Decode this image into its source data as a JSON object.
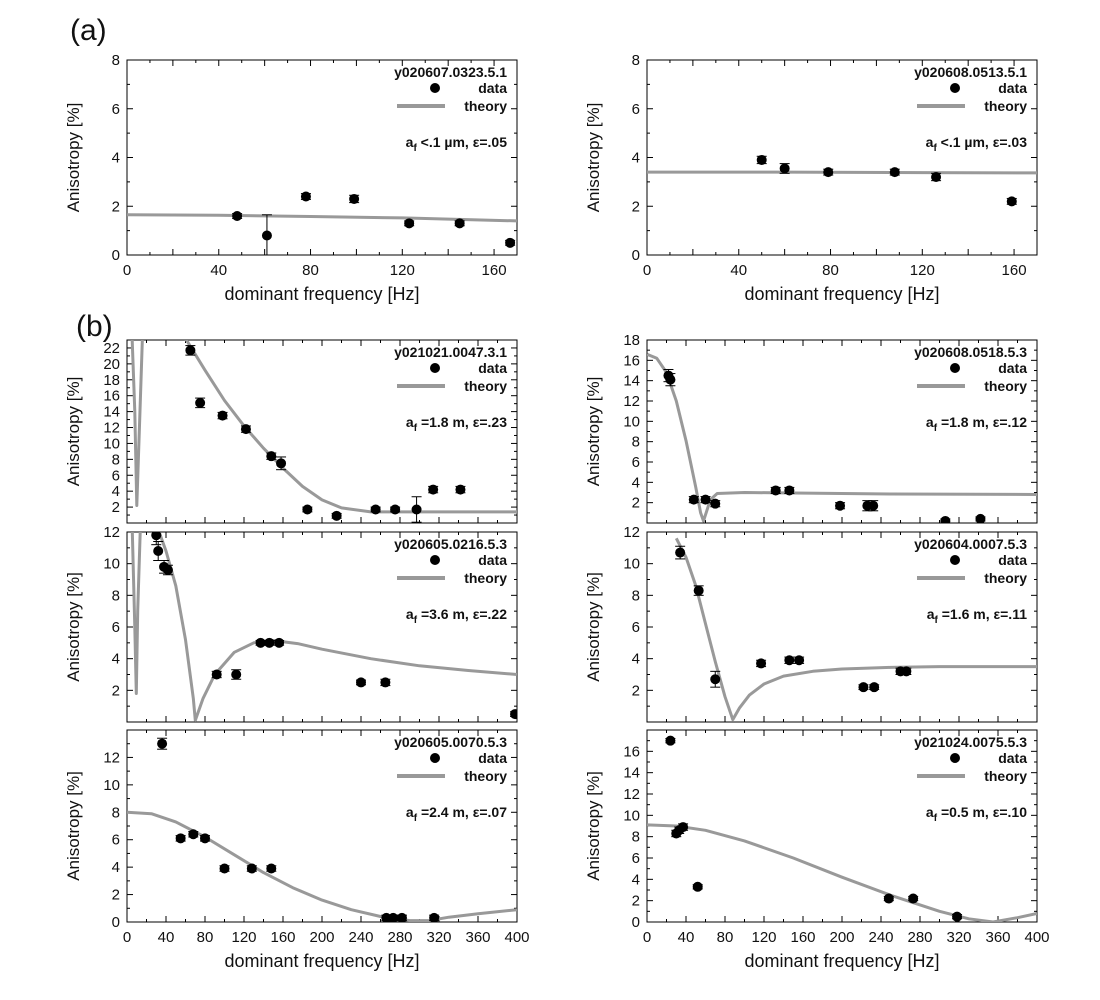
{
  "figure": {
    "panel_a_label": "(a)",
    "panel_b_label": "(b)",
    "xlabel": "dominant frequency [Hz]",
    "ylabel": "Anisotropy [%]",
    "legend_data": "data",
    "legend_theory": "theory",
    "colors": {
      "data": "#000000",
      "theory": "#999999",
      "axis": "#000000"
    }
  },
  "chart_data": [
    {
      "id": "a-left",
      "type": "scatter",
      "title": "y020607.0323.5.1",
      "annotation": {
        "a": "a",
        "sub": "f",
        "rest": " <.1 µm, ε=.05"
      },
      "xlim": [
        0,
        170
      ],
      "ylim": [
        0,
        8
      ],
      "xticks": [
        0,
        40,
        80,
        120,
        160
      ],
      "yticks": [
        0,
        2,
        4,
        6,
        8
      ],
      "data": [
        {
          "x": 48,
          "y": 1.6,
          "err": 0.1
        },
        {
          "x": 61,
          "y": 0.8,
          "err": 0.85
        },
        {
          "x": 78,
          "y": 2.4,
          "err": 0.12
        },
        {
          "x": 99,
          "y": 2.3,
          "err": 0.15
        },
        {
          "x": 123,
          "y": 1.3,
          "err": 0.1
        },
        {
          "x": 145,
          "y": 1.3,
          "err": 0.1
        },
        {
          "x": 167,
          "y": 0.5,
          "err": 0.1
        }
      ],
      "theory": [
        [
          0,
          1.65
        ],
        [
          40,
          1.63
        ],
        [
          80,
          1.58
        ],
        [
          120,
          1.52
        ],
        [
          170,
          1.4
        ]
      ]
    },
    {
      "id": "a-right",
      "type": "scatter",
      "title": "y020608.0513.5.1",
      "annotation": {
        "a": "a",
        "sub": "f",
        "rest": " <.1 µm, ε=.03"
      },
      "xlim": [
        0,
        170
      ],
      "ylim": [
        0,
        8
      ],
      "xticks": [
        0,
        40,
        80,
        120,
        160
      ],
      "yticks": [
        0,
        2,
        4,
        6,
        8
      ],
      "data": [
        {
          "x": 50,
          "y": 3.9,
          "err": 0.15
        },
        {
          "x": 60,
          "y": 3.55,
          "err": 0.2
        },
        {
          "x": 79,
          "y": 3.4,
          "err": 0.12
        },
        {
          "x": 108,
          "y": 3.4,
          "err": 0.12
        },
        {
          "x": 126,
          "y": 3.2,
          "err": 0.15
        },
        {
          "x": 159,
          "y": 2.2,
          "err": 0.12
        }
      ],
      "theory": [
        [
          0,
          3.4
        ],
        [
          60,
          3.4
        ],
        [
          120,
          3.38
        ],
        [
          170,
          3.37
        ]
      ]
    },
    {
      "id": "b1-left",
      "type": "scatter",
      "title": "y021021.0047.3.1",
      "annotation": {
        "a": "a",
        "sub": "f",
        "rest": " =1.8 m, ε=.23"
      },
      "xlim": [
        0,
        400
      ],
      "ylim": [
        0,
        23
      ],
      "xticks": [],
      "yticks": [
        2,
        4,
        6,
        8,
        10,
        12,
        14,
        16,
        18,
        20,
        22
      ],
      "data": [
        {
          "x": 65,
          "y": 21.7,
          "err": 0.6
        },
        {
          "x": 75,
          "y": 15.1,
          "err": 0.6
        },
        {
          "x": 98,
          "y": 13.5,
          "err": 0.4
        },
        {
          "x": 122,
          "y": 11.8,
          "err": 0.4
        },
        {
          "x": 148,
          "y": 8.4,
          "err": 0.4
        },
        {
          "x": 158,
          "y": 7.5,
          "err": 0.8
        },
        {
          "x": 185,
          "y": 1.7,
          "err": 0.3
        },
        {
          "x": 215,
          "y": 0.9,
          "err": 0.3
        },
        {
          "x": 255,
          "y": 1.7,
          "err": 0.3
        },
        {
          "x": 275,
          "y": 1.7,
          "err": 0.3
        },
        {
          "x": 297,
          "y": 1.7,
          "err": 1.6
        },
        {
          "x": 314,
          "y": 4.2,
          "err": 0.4
        },
        {
          "x": 342,
          "y": 4.2,
          "err": 0.4
        }
      ],
      "theory": [
        [
          5,
          24
        ],
        [
          8,
          14
        ],
        [
          10,
          2.2
        ],
        [
          13,
          13
        ],
        [
          16,
          24
        ],
        [
          60,
          23.2
        ],
        [
          80,
          19.2
        ],
        [
          100,
          15.4
        ],
        [
          120,
          12.2
        ],
        [
          140,
          9.4
        ],
        [
          160,
          6.9
        ],
        [
          180,
          4.6
        ],
        [
          200,
          2.9
        ],
        [
          220,
          1.9
        ],
        [
          250,
          1.4
        ],
        [
          300,
          1.4
        ],
        [
          400,
          1.4
        ]
      ]
    },
    {
      "id": "b1-right",
      "type": "scatter",
      "title": "y020608.0518.5.3",
      "annotation": {
        "a": "a",
        "sub": "f",
        "rest": " =1.8 m, ε=.12"
      },
      "xlim": [
        0,
        400
      ],
      "ylim": [
        0,
        18
      ],
      "xticks": [],
      "yticks": [
        2,
        4,
        6,
        8,
        10,
        12,
        14,
        16,
        18
      ],
      "data": [
        {
          "x": 22,
          "y": 14.5,
          "err": 0.6
        },
        {
          "x": 24,
          "y": 14.1,
          "err": 0.6
        },
        {
          "x": 48,
          "y": 2.3,
          "err": 0.3
        },
        {
          "x": 60,
          "y": 2.3,
          "err": 0.3
        },
        {
          "x": 70,
          "y": 1.9,
          "err": 0.3
        },
        {
          "x": 132,
          "y": 3.2,
          "err": 0.3
        },
        {
          "x": 146,
          "y": 3.2,
          "err": 0.3
        },
        {
          "x": 198,
          "y": 1.7,
          "err": 0.3
        },
        {
          "x": 226,
          "y": 1.7,
          "err": 0.5
        },
        {
          "x": 232,
          "y": 1.7,
          "err": 0.5
        },
        {
          "x": 306,
          "y": 0.2,
          "err": 0.2
        },
        {
          "x": 342,
          "y": 0.4,
          "err": 0.2
        }
      ],
      "theory": [
        [
          0,
          16.6
        ],
        [
          10,
          16.2
        ],
        [
          20,
          14.8
        ],
        [
          30,
          12.0
        ],
        [
          40,
          8.1
        ],
        [
          50,
          3.5
        ],
        [
          55,
          1.0
        ],
        [
          58,
          0.2
        ],
        [
          65,
          2.3
        ],
        [
          72,
          2.9
        ],
        [
          100,
          3.0
        ],
        [
          150,
          2.95
        ],
        [
          250,
          2.85
        ],
        [
          400,
          2.8
        ]
      ]
    },
    {
      "id": "b2-left",
      "type": "scatter",
      "title": "y020605.0216.5.3",
      "annotation": {
        "a": "a",
        "sub": "f",
        "rest": " =3.6 m, ε=.22"
      },
      "xlim": [
        0,
        400
      ],
      "ylim": [
        0,
        12
      ],
      "xticks": [],
      "yticks": [
        2,
        4,
        6,
        8,
        10,
        12
      ],
      "data": [
        {
          "x": 30,
          "y": 11.8,
          "err": 0.6
        },
        {
          "x": 32,
          "y": 10.8,
          "err": 0.6
        },
        {
          "x": 38,
          "y": 9.8,
          "err": 0.4
        },
        {
          "x": 42,
          "y": 9.6,
          "err": 0.3
        },
        {
          "x": 92,
          "y": 3.0,
          "err": 0.2
        },
        {
          "x": 112,
          "y": 3.0,
          "err": 0.3
        },
        {
          "x": 137,
          "y": 5.0,
          "err": 0.15
        },
        {
          "x": 146,
          "y": 5.0,
          "err": 0.15
        },
        {
          "x": 156,
          "y": 5.0,
          "err": 0.15
        },
        {
          "x": 240,
          "y": 2.5,
          "err": 0.15
        },
        {
          "x": 265,
          "y": 2.5,
          "err": 0.2
        },
        {
          "x": 398,
          "y": 0.5,
          "err": 0.15
        }
      ],
      "theory": [
        [
          5,
          13
        ],
        [
          8,
          6
        ],
        [
          9.5,
          1.8
        ],
        [
          11,
          7
        ],
        [
          14,
          13
        ],
        [
          30,
          12.5
        ],
        [
          40,
          10.8
        ],
        [
          50,
          8.6
        ],
        [
          60,
          5.2
        ],
        [
          68,
          1.5
        ],
        [
          70,
          0.1
        ],
        [
          78,
          1.5
        ],
        [
          90,
          3.0
        ],
        [
          110,
          4.4
        ],
        [
          130,
          5.0
        ],
        [
          150,
          5.15
        ],
        [
          175,
          4.95
        ],
        [
          200,
          4.6
        ],
        [
          250,
          4.0
        ],
        [
          300,
          3.55
        ],
        [
          350,
          3.25
        ],
        [
          400,
          3.0
        ]
      ]
    },
    {
      "id": "b2-right",
      "type": "scatter",
      "title": "y020604.0007.5.3",
      "annotation": {
        "a": "a",
        "sub": "f",
        "rest": " =1.6 m, ε=.11"
      },
      "xlim": [
        0,
        400
      ],
      "ylim": [
        0,
        12
      ],
      "xticks": [],
      "yticks": [
        2,
        4,
        6,
        8,
        10,
        12
      ],
      "data": [
        {
          "x": 34,
          "y": 10.7,
          "err": 0.4
        },
        {
          "x": 53,
          "y": 8.3,
          "err": 0.3
        },
        {
          "x": 70,
          "y": 2.7,
          "err": 0.5
        },
        {
          "x": 117,
          "y": 3.7,
          "err": 0.2
        },
        {
          "x": 146,
          "y": 3.9,
          "err": 0.2
        },
        {
          "x": 156,
          "y": 3.9,
          "err": 0.2
        },
        {
          "x": 222,
          "y": 2.2,
          "err": 0.15
        },
        {
          "x": 233,
          "y": 2.2,
          "err": 0.15
        },
        {
          "x": 260,
          "y": 3.2,
          "err": 0.2
        },
        {
          "x": 266,
          "y": 3.2,
          "err": 0.2
        }
      ],
      "theory": [
        [
          30,
          11.6
        ],
        [
          40,
          10.4
        ],
        [
          50,
          8.6
        ],
        [
          60,
          6.2
        ],
        [
          70,
          3.8
        ],
        [
          80,
          1.6
        ],
        [
          88,
          0.15
        ],
        [
          95,
          0.9
        ],
        [
          105,
          1.7
        ],
        [
          120,
          2.4
        ],
        [
          140,
          2.9
        ],
        [
          170,
          3.2
        ],
        [
          200,
          3.35
        ],
        [
          250,
          3.45
        ],
        [
          300,
          3.5
        ],
        [
          400,
          3.5
        ]
      ]
    },
    {
      "id": "b3-left",
      "type": "scatter",
      "title": "y020605.0070.5.3",
      "annotation": {
        "a": "a",
        "sub": "f",
        "rest": " =2.4 m, ε=.07"
      },
      "xlim": [
        0,
        400
      ],
      "ylim": [
        0,
        14
      ],
      "xticks": [
        0,
        40,
        80,
        120,
        160,
        200,
        240,
        280,
        320,
        360,
        400
      ],
      "yticks": [
        0,
        2,
        4,
        6,
        8,
        10,
        12
      ],
      "data": [
        {
          "x": 36,
          "y": 13.0,
          "err": 0.4
        },
        {
          "x": 55,
          "y": 6.1,
          "err": 0.2
        },
        {
          "x": 68,
          "y": 6.4,
          "err": 0.2
        },
        {
          "x": 80,
          "y": 6.1,
          "err": 0.2
        },
        {
          "x": 100,
          "y": 3.9,
          "err": 0.2
        },
        {
          "x": 128,
          "y": 3.9,
          "err": 0.2
        },
        {
          "x": 148,
          "y": 3.9,
          "err": 0.2
        },
        {
          "x": 266,
          "y": 0.3,
          "err": 0.2
        },
        {
          "x": 273,
          "y": 0.3,
          "err": 0.2
        },
        {
          "x": 282,
          "y": 0.3,
          "err": 0.2
        },
        {
          "x": 315,
          "y": 0.3,
          "err": 0.2
        }
      ],
      "theory": [
        [
          0,
          8.0
        ],
        [
          25,
          7.9
        ],
        [
          50,
          7.3
        ],
        [
          80,
          6.2
        ],
        [
          110,
          4.9
        ],
        [
          140,
          3.6
        ],
        [
          170,
          2.5
        ],
        [
          200,
          1.6
        ],
        [
          230,
          0.9
        ],
        [
          260,
          0.4
        ],
        [
          290,
          0.1
        ],
        [
          310,
          0.1
        ],
        [
          330,
          0.35
        ],
        [
          360,
          0.6
        ],
        [
          400,
          0.9
        ]
      ]
    },
    {
      "id": "b3-right",
      "type": "scatter",
      "title": "y021024.0075.5.3",
      "annotation": {
        "a": "a",
        "sub": "f",
        "rest": " =0.5 m, ε=.10"
      },
      "xlim": [
        0,
        400
      ],
      "ylim": [
        0,
        18
      ],
      "xticks": [
        0,
        40,
        80,
        120,
        160,
        200,
        240,
        280,
        320,
        360,
        400
      ],
      "yticks": [
        0,
        2,
        4,
        6,
        8,
        10,
        12,
        14,
        16
      ],
      "data": [
        {
          "x": 24,
          "y": 17.0,
          "err": 0.2
        },
        {
          "x": 30,
          "y": 8.3,
          "err": 0.3
        },
        {
          "x": 33,
          "y": 8.6,
          "err": 0.3
        },
        {
          "x": 37,
          "y": 8.9,
          "err": 0.3
        },
        {
          "x": 52,
          "y": 3.3,
          "err": 0.2
        },
        {
          "x": 248,
          "y": 2.2,
          "err": 0.2
        },
        {
          "x": 273,
          "y": 2.2,
          "err": 0.2
        },
        {
          "x": 318,
          "y": 0.5,
          "err": 0.2
        }
      ],
      "theory": [
        [
          0,
          9.1
        ],
        [
          30,
          9.0
        ],
        [
          60,
          8.6
        ],
        [
          100,
          7.6
        ],
        [
          150,
          6.0
        ],
        [
          200,
          4.2
        ],
        [
          250,
          2.5
        ],
        [
          300,
          1.0
        ],
        [
          330,
          0.3
        ],
        [
          355,
          0.0
        ],
        [
          380,
          0.4
        ],
        [
          400,
          0.8
        ]
      ]
    }
  ]
}
